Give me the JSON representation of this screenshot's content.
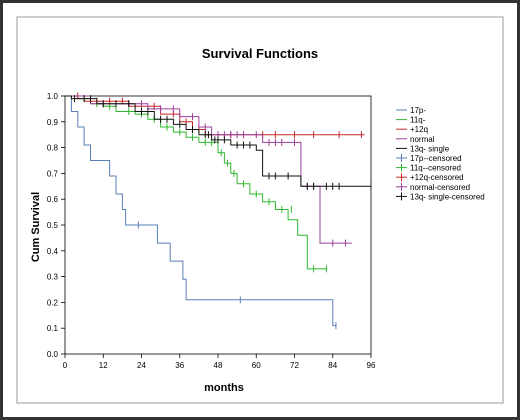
{
  "chart_data": {
    "type": "line",
    "subtype": "kaplan-meier step",
    "title": "Survival Functions",
    "xlabel": "months",
    "ylabel": "Cum Survival",
    "xlim": [
      0,
      96
    ],
    "ylim": [
      0,
      1.0
    ],
    "xticks": [
      "0",
      "12",
      "24",
      "36",
      "48",
      "60",
      "72",
      "84",
      "96"
    ],
    "yticks": [
      "0.0",
      "0.1",
      "0.2",
      "0.3",
      "0.4",
      "0.5",
      "0.6",
      "0.7",
      "0.8",
      "0.9",
      "1.0"
    ],
    "grid": false,
    "legend_position": "right",
    "series": [
      {
        "name": "17p-",
        "color": "#5a7fb5",
        "points": [
          [
            0,
            1.0
          ],
          [
            2,
            1.0
          ],
          [
            2,
            0.94
          ],
          [
            4,
            0.94
          ],
          [
            4,
            0.88
          ],
          [
            6,
            0.88
          ],
          [
            6,
            0.81
          ],
          [
            8,
            0.81
          ],
          [
            8,
            0.75
          ],
          [
            14,
            0.75
          ],
          [
            14,
            0.69
          ],
          [
            16,
            0.69
          ],
          [
            16,
            0.62
          ],
          [
            18,
            0.62
          ],
          [
            18,
            0.56
          ],
          [
            19,
            0.56
          ],
          [
            19,
            0.5
          ],
          [
            29,
            0.5
          ],
          [
            29,
            0.43
          ],
          [
            33,
            0.43
          ],
          [
            33,
            0.36
          ],
          [
            37,
            0.36
          ],
          [
            37,
            0.29
          ],
          [
            38,
            0.29
          ],
          [
            38,
            0.21
          ],
          [
            84,
            0.21
          ],
          [
            84,
            0.11
          ],
          [
            85,
            0.11
          ]
        ],
        "censor_name": "17p--censored",
        "censor_color": "#5a7fb5",
        "censored": [
          [
            23,
            0.5
          ],
          [
            55,
            0.21
          ],
          [
            85,
            0.11
          ]
        ]
      },
      {
        "name": "11q-",
        "color": "#2fb82f",
        "points": [
          [
            0,
            1.0
          ],
          [
            4,
            1.0
          ],
          [
            4,
            0.99
          ],
          [
            8,
            0.99
          ],
          [
            8,
            0.97
          ],
          [
            12,
            0.97
          ],
          [
            12,
            0.96
          ],
          [
            16,
            0.96
          ],
          [
            16,
            0.94
          ],
          [
            22,
            0.94
          ],
          [
            22,
            0.93
          ],
          [
            26,
            0.93
          ],
          [
            26,
            0.91
          ],
          [
            30,
            0.91
          ],
          [
            30,
            0.88
          ],
          [
            34,
            0.88
          ],
          [
            34,
            0.86
          ],
          [
            38,
            0.86
          ],
          [
            38,
            0.84
          ],
          [
            42,
            0.84
          ],
          [
            42,
            0.82
          ],
          [
            48,
            0.82
          ],
          [
            48,
            0.78
          ],
          [
            50,
            0.78
          ],
          [
            50,
            0.74
          ],
          [
            52,
            0.74
          ],
          [
            52,
            0.7
          ],
          [
            54,
            0.7
          ],
          [
            54,
            0.66
          ],
          [
            58,
            0.66
          ],
          [
            58,
            0.62
          ],
          [
            62,
            0.62
          ],
          [
            62,
            0.59
          ],
          [
            66,
            0.59
          ],
          [
            66,
            0.56
          ],
          [
            70,
            0.56
          ],
          [
            70,
            0.52
          ],
          [
            73,
            0.52
          ],
          [
            73,
            0.46
          ],
          [
            76,
            0.46
          ],
          [
            76,
            0.33
          ],
          [
            82,
            0.33
          ]
        ],
        "censor_name": "11q--censored",
        "censor_color": "#2fb82f",
        "censored": [
          [
            6,
            0.99
          ],
          [
            10,
            0.97
          ],
          [
            14,
            0.96
          ],
          [
            20,
            0.94
          ],
          [
            24,
            0.93
          ],
          [
            28,
            0.91
          ],
          [
            32,
            0.88
          ],
          [
            36,
            0.86
          ],
          [
            40,
            0.84
          ],
          [
            44,
            0.82
          ],
          [
            46,
            0.82
          ],
          [
            49,
            0.78
          ],
          [
            51,
            0.74
          ],
          [
            53,
            0.7
          ],
          [
            56,
            0.66
          ],
          [
            60,
            0.62
          ],
          [
            64,
            0.59
          ],
          [
            68,
            0.56
          ],
          [
            71,
            0.56
          ],
          [
            78,
            0.33
          ],
          [
            82,
            0.33
          ]
        ]
      },
      {
        "name": "+12q",
        "color": "#c62828",
        "points": [
          [
            0,
            1.0
          ],
          [
            6,
            1.0
          ],
          [
            6,
            0.98
          ],
          [
            20,
            0.98
          ],
          [
            20,
            0.96
          ],
          [
            30,
            0.96
          ],
          [
            30,
            0.93
          ],
          [
            36,
            0.93
          ],
          [
            36,
            0.9
          ],
          [
            40,
            0.9
          ],
          [
            40,
            0.87
          ],
          [
            44,
            0.87
          ],
          [
            44,
            0.85
          ],
          [
            94,
            0.85
          ]
        ],
        "censor_name": "+12q-censored",
        "censor_color": "#c62828",
        "censored": [
          [
            4,
            1.0
          ],
          [
            10,
            0.98
          ],
          [
            14,
            0.98
          ],
          [
            18,
            0.98
          ],
          [
            24,
            0.96
          ],
          [
            28,
            0.96
          ],
          [
            34,
            0.93
          ],
          [
            38,
            0.9
          ],
          [
            42,
            0.87
          ],
          [
            48,
            0.85
          ],
          [
            52,
            0.85
          ],
          [
            56,
            0.85
          ],
          [
            62,
            0.85
          ],
          [
            66,
            0.85
          ],
          [
            72,
            0.85
          ],
          [
            78,
            0.85
          ],
          [
            86,
            0.85
          ],
          [
            93,
            0.85
          ]
        ]
      },
      {
        "name": "normal",
        "color": "#9b3f9b",
        "points": [
          [
            0,
            1.0
          ],
          [
            8,
            1.0
          ],
          [
            8,
            0.97
          ],
          [
            26,
            0.97
          ],
          [
            26,
            0.95
          ],
          [
            36,
            0.95
          ],
          [
            36,
            0.92
          ],
          [
            42,
            0.92
          ],
          [
            42,
            0.88
          ],
          [
            46,
            0.88
          ],
          [
            46,
            0.85
          ],
          [
            62,
            0.85
          ],
          [
            62,
            0.82
          ],
          [
            74,
            0.82
          ],
          [
            74,
            0.65
          ],
          [
            80,
            0.65
          ],
          [
            80,
            0.43
          ],
          [
            90,
            0.43
          ]
        ],
        "censor_name": "normal-censored",
        "censor_color": "#9b3f9b",
        "censored": [
          [
            12,
            0.97
          ],
          [
            16,
            0.97
          ],
          [
            20,
            0.97
          ],
          [
            24,
            0.97
          ],
          [
            30,
            0.95
          ],
          [
            34,
            0.95
          ],
          [
            40,
            0.92
          ],
          [
            44,
            0.88
          ],
          [
            48,
            0.85
          ],
          [
            50,
            0.85
          ],
          [
            52,
            0.85
          ],
          [
            54,
            0.85
          ],
          [
            56,
            0.85
          ],
          [
            60,
            0.85
          ],
          [
            64,
            0.82
          ],
          [
            66,
            0.82
          ],
          [
            68,
            0.82
          ],
          [
            72,
            0.82
          ],
          [
            76,
            0.65
          ],
          [
            78,
            0.65
          ],
          [
            84,
            0.43
          ],
          [
            88,
            0.43
          ]
        ]
      },
      {
        "name": "13q- single",
        "color": "#111111",
        "points": [
          [
            0,
            1.0
          ],
          [
            2,
            1.0
          ],
          [
            2,
            0.99
          ],
          [
            10,
            0.99
          ],
          [
            10,
            0.97
          ],
          [
            22,
            0.97
          ],
          [
            22,
            0.94
          ],
          [
            28,
            0.94
          ],
          [
            28,
            0.91
          ],
          [
            34,
            0.91
          ],
          [
            34,
            0.89
          ],
          [
            38,
            0.89
          ],
          [
            38,
            0.87
          ],
          [
            42,
            0.87
          ],
          [
            42,
            0.85
          ],
          [
            46,
            0.85
          ],
          [
            46,
            0.83
          ],
          [
            52,
            0.83
          ],
          [
            52,
            0.81
          ],
          [
            60,
            0.81
          ],
          [
            60,
            0.79
          ],
          [
            62,
            0.79
          ],
          [
            62,
            0.69
          ],
          [
            74,
            0.69
          ],
          [
            74,
            0.65
          ],
          [
            96,
            0.65
          ]
        ],
        "censor_name": "13q- single-censored",
        "censor_color": "#111111",
        "censored": [
          [
            3,
            0.99
          ],
          [
            6,
            0.99
          ],
          [
            8,
            0.99
          ],
          [
            12,
            0.97
          ],
          [
            16,
            0.97
          ],
          [
            20,
            0.97
          ],
          [
            24,
            0.94
          ],
          [
            26,
            0.94
          ],
          [
            30,
            0.91
          ],
          [
            32,
            0.91
          ],
          [
            36,
            0.89
          ],
          [
            40,
            0.87
          ],
          [
            44,
            0.85
          ],
          [
            45,
            0.85
          ],
          [
            47,
            0.83
          ],
          [
            48,
            0.83
          ],
          [
            50,
            0.83
          ],
          [
            54,
            0.81
          ],
          [
            56,
            0.81
          ],
          [
            58,
            0.81
          ],
          [
            64,
            0.69
          ],
          [
            66,
            0.69
          ],
          [
            70,
            0.69
          ],
          [
            76,
            0.65
          ],
          [
            78,
            0.65
          ],
          [
            82,
            0.65
          ],
          [
            84,
            0.65
          ],
          [
            86,
            0.65
          ],
          [
            96,
            0.65
          ]
        ]
      }
    ]
  }
}
